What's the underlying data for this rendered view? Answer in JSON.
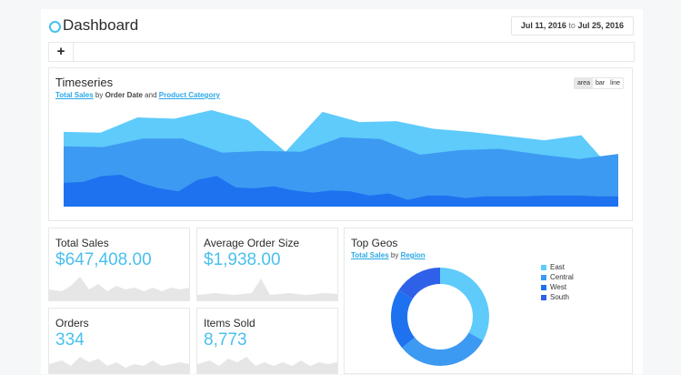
{
  "header": {
    "title": "Dashboard",
    "date_start": "Jul 11, 2016",
    "date_to": "to",
    "date_end": "Jul 25, 2016"
  },
  "toolbar": {
    "add_icon": "plus-icon",
    "add_label": "+"
  },
  "timeseries": {
    "title": "Timeseries",
    "subtitle": {
      "measure": "Total Sales",
      "by": "by",
      "dim1": "Order Date",
      "and": "and",
      "dim2": "Product Category"
    },
    "view_options": [
      "area",
      "bar",
      "line"
    ],
    "selected_view": "area"
  },
  "metrics": [
    {
      "title": "Total Sales",
      "value": "$647,408.00"
    },
    {
      "title": "Average Order Size",
      "value": "$1,938.00"
    },
    {
      "title": "Orders",
      "value": "334"
    },
    {
      "title": "Items Sold",
      "value": "8,773"
    }
  ],
  "top_geos": {
    "title": "Top Geos",
    "subtitle": {
      "measure": "Total Sales",
      "by": "by",
      "dim": "Region"
    },
    "legend": [
      "East",
      "Central",
      "West",
      "South"
    ]
  },
  "colors": {
    "accent": "#45c1f3",
    "east": "#5ecbfb",
    "central": "#3d9af2",
    "west": "#1e72ef",
    "south": "#2f60e8",
    "spark": "#e6e6e6"
  },
  "chart_data": [
    {
      "type": "area",
      "series": [
        {
          "values": [
            0.56,
            0.58,
            0.72,
            0.75,
            0.56,
            0.43,
            0.36,
            0.63,
            0.72,
            0.45,
            0.43,
            0.48,
            0.38,
            0.33,
            0.38,
            0.36,
            0.26,
            0.31,
            0.16,
            0.26,
            0.26,
            0.2,
            0.24,
            0.24,
            0.24,
            0.26,
            0.26,
            0.26,
            0.24,
            0.24
          ]
        },
        {
          "values": [
            0.86,
            0.82,
            0.88,
            0.85,
            0.71,
            0.88,
            0.93,
            1.0,
            0.87,
            0.77,
            0.9,
            0.88,
            0.85,
            0.79,
            0.86
          ]
        },
        {
          "values": [
            0.34,
            0.34,
            0.5,
            0.47,
            1.0,
            0.72,
            0.0,
            0.6,
            0.4,
            0.79,
            0.5,
            0.4,
            0.43,
            0.44,
            0.44,
            0.7
          ]
        }
      ]
    },
    {
      "type": "pie",
      "categories": [
        "East",
        "Central",
        "West",
        "South"
      ],
      "values": [
        33,
        31,
        20,
        16
      ]
    }
  ]
}
